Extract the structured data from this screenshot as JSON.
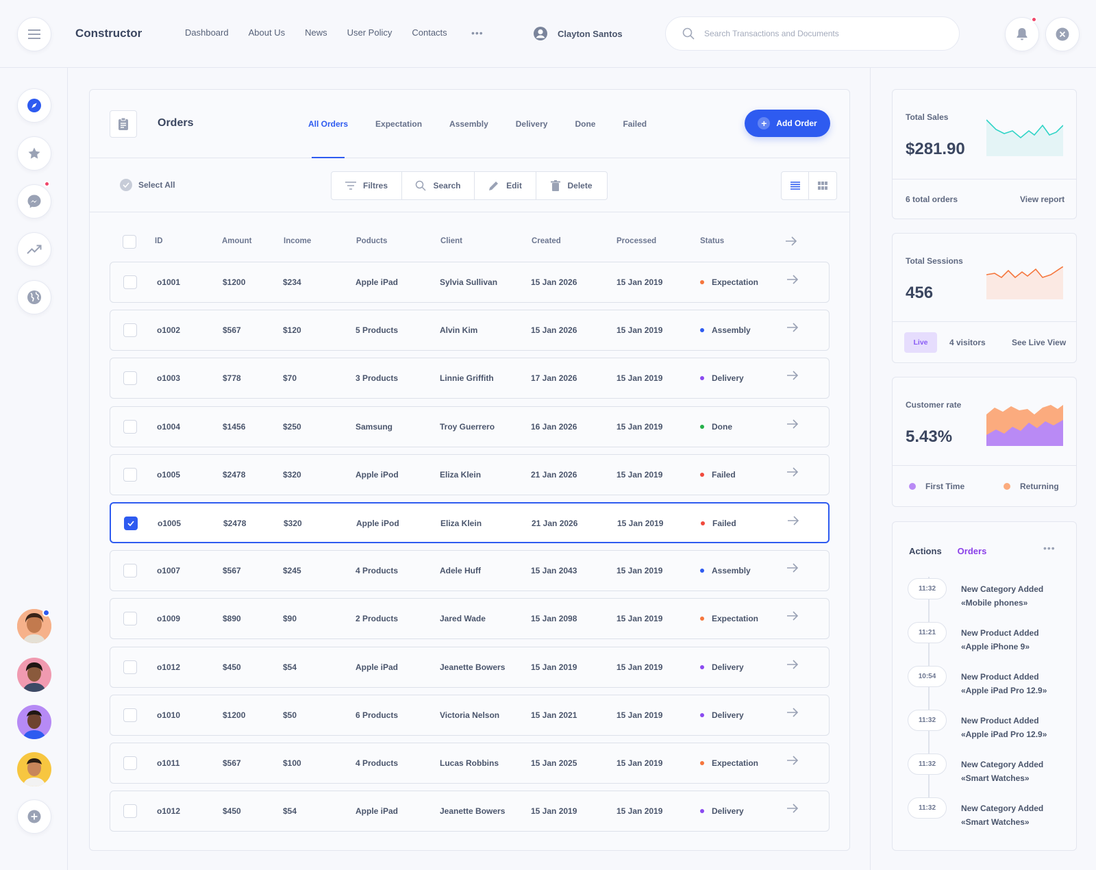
{
  "topbar": {
    "brand": "Constructor",
    "nav": [
      "Dashboard",
      "About Us",
      "News",
      "User Policy",
      "Contacts"
    ],
    "more": "•••",
    "user_name": "Clayton Santos",
    "search_placeholder": "Search Transactions and Documents"
  },
  "sidebar": {
    "icons": [
      "compass-icon",
      "star-icon",
      "messenger-icon",
      "trending-icon",
      "globe-icon"
    ],
    "add_icon": "plus-icon"
  },
  "orders": {
    "title": "Orders",
    "tabs": [
      "All Orders",
      "Expectation",
      "Assembly",
      "Delivery",
      "Done",
      "Failed"
    ],
    "active_tab": "All Orders",
    "add_label": "Add Order",
    "select_all": "Select All",
    "toolbar": {
      "filters": "Filtres",
      "search": "Search",
      "edit": "Edit",
      "delete": "Delete"
    },
    "columns": [
      "ID",
      "Amount",
      "Income",
      "Poducts",
      "Client",
      "Created",
      "Processed",
      "Status"
    ],
    "rows": [
      {
        "id": "o1001",
        "amount": "$1200",
        "income": "$234",
        "products": "Apple iPad",
        "client": "Sylvia Sullivan",
        "created": "15 Jan 2026",
        "processed": "15 Jan 2019",
        "status": "Expectation",
        "selected": false
      },
      {
        "id": "o1002",
        "amount": "$567",
        "income": "$120",
        "products": "5 Products",
        "client": "Alvin Kim",
        "created": "15 Jan 2026",
        "processed": "15 Jan 2019",
        "status": "Assembly",
        "selected": false
      },
      {
        "id": "o1003",
        "amount": "$778",
        "income": "$70",
        "products": "3 Products",
        "client": "Linnie Griffith",
        "created": "17 Jan 2026",
        "processed": "15 Jan 2019",
        "status": "Delivery",
        "selected": false
      },
      {
        "id": "o1004",
        "amount": "$1456",
        "income": "$250",
        "products": "Samsung",
        "client": "Troy Guerrero",
        "created": "16 Jan 2026",
        "processed": "15 Jan 2019",
        "status": "Done",
        "selected": false
      },
      {
        "id": "o1005",
        "amount": "$2478",
        "income": "$320",
        "products": "Apple iPod",
        "client": "Eliza Klein",
        "created": "21 Jan 2026",
        "processed": "15 Jan 2019",
        "status": "Failed",
        "selected": false
      },
      {
        "id": "o1005",
        "amount": "$2478",
        "income": "$320",
        "products": "Apple iPod",
        "client": "Eliza Klein",
        "created": "21 Jan 2026",
        "processed": "15 Jan 2019",
        "status": "Failed",
        "selected": true
      },
      {
        "id": "o1007",
        "amount": "$567",
        "income": "$245",
        "products": "4 Products",
        "client": "Adele Huff",
        "created": "15 Jan 2043",
        "processed": "15 Jan 2019",
        "status": "Assembly",
        "selected": false
      },
      {
        "id": "o1009",
        "amount": "$890",
        "income": "$90",
        "products": "2 Products",
        "client": "Jared Wade",
        "created": "15 Jan 2098",
        "processed": "15 Jan 2019",
        "status": "Expectation",
        "selected": false
      },
      {
        "id": "o1012",
        "amount": "$450",
        "income": "$54",
        "products": "Apple iPad",
        "client": "Jeanette Bowers",
        "created": "15 Jan 2019",
        "processed": "15 Jan 2019",
        "status": "Delivery",
        "selected": false
      },
      {
        "id": "o1010",
        "amount": "$1200",
        "income": "$50",
        "products": "6 Products",
        "client": "Victoria Nelson",
        "created": "15 Jan 2021",
        "processed": "15 Jan 2019",
        "status": "Delivery",
        "selected": false
      },
      {
        "id": "o1011",
        "amount": "$567",
        "income": "$100",
        "products": "4 Products",
        "client": "Lucas Robbins",
        "created": "15 Jan 2025",
        "processed": "15 Jan 2019",
        "status": "Expectation",
        "selected": false
      },
      {
        "id": "o1012",
        "amount": "$450",
        "income": "$54",
        "products": "Apple iPad",
        "client": "Jeanette Bowers",
        "created": "15 Jan 2019",
        "processed": "15 Jan 2019",
        "status": "Delivery",
        "selected": false
      }
    ],
    "status_colors": {
      "Expectation": "#f5763d",
      "Assembly": "#2e5bf0",
      "Delivery": "#8a4af0",
      "Done": "#25b04a",
      "Failed": "#f04a3d"
    }
  },
  "stats": {
    "sales": {
      "label": "Total Sales",
      "value": "$281.90",
      "foot_left": "6 total orders",
      "foot_right": "View report",
      "color": "#2fd4c6"
    },
    "sessions": {
      "label": "Total Sessions",
      "value": "456",
      "badge": "Live",
      "visitors": "4 visitors",
      "link": "See Live View",
      "color": "#f5763d"
    },
    "rate": {
      "label": "Customer rate",
      "value": "5.43%",
      "legend": [
        "First Time",
        "Returning"
      ],
      "colors": [
        "#b98af5",
        "#fbab7e"
      ]
    }
  },
  "activity": {
    "tabs": [
      "Actions",
      "Orders"
    ],
    "active_tab": "Orders",
    "more": "•••",
    "items": [
      {
        "time": "11:32",
        "title": "New Category Added",
        "detail": "«Mobile phones»"
      },
      {
        "time": "11:21",
        "title": "New Product Added",
        "detail": "«Apple iPhone 9»"
      },
      {
        "time": "10:54",
        "title": "New Product Added",
        "detail": "«Apple iPad Pro 12.9»"
      },
      {
        "time": "11:32",
        "title": "New Product Added",
        "detail": "«Apple iPad Pro 12.9»"
      },
      {
        "time": "11:32",
        "title": "New Category Added",
        "detail": "«Smart Watches»"
      },
      {
        "time": "11:32",
        "title": "New Category Added",
        "detail": "«Smart Watches»"
      }
    ]
  }
}
